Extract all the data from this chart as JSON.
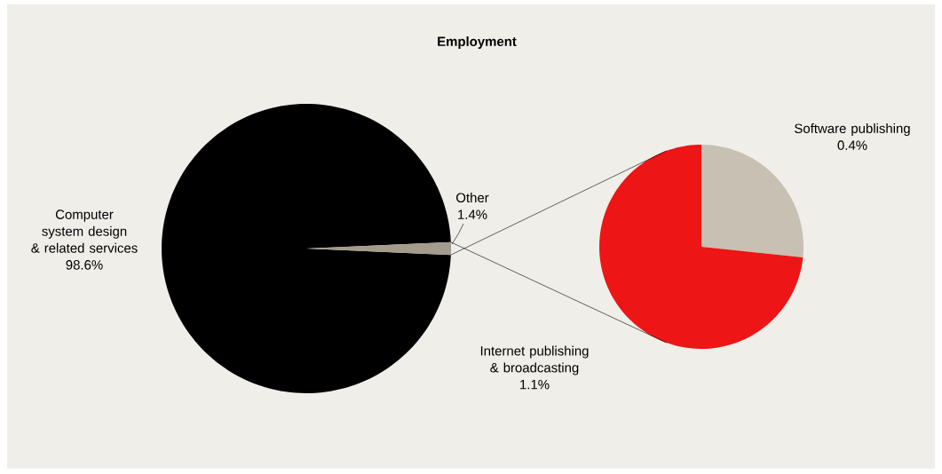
{
  "chart_data": [
    {
      "type": "pie",
      "title": "Employment",
      "categories": [
        "Computer system design & related services",
        "Other"
      ],
      "values": [
        98.6,
        1.4
      ],
      "value_labels": [
        "98.6%",
        "1.4%"
      ],
      "colors": [
        "#000000",
        "#a39c8c"
      ]
    },
    {
      "type": "pie",
      "categories": [
        "Software publishing",
        "Internet publishing & broadcasting"
      ],
      "values": [
        0.4,
        1.1
      ],
      "value_labels": [
        "0.4%",
        "1.1%"
      ],
      "colors": [
        "#c8c0b3",
        "#ed1515"
      ]
    }
  ]
}
